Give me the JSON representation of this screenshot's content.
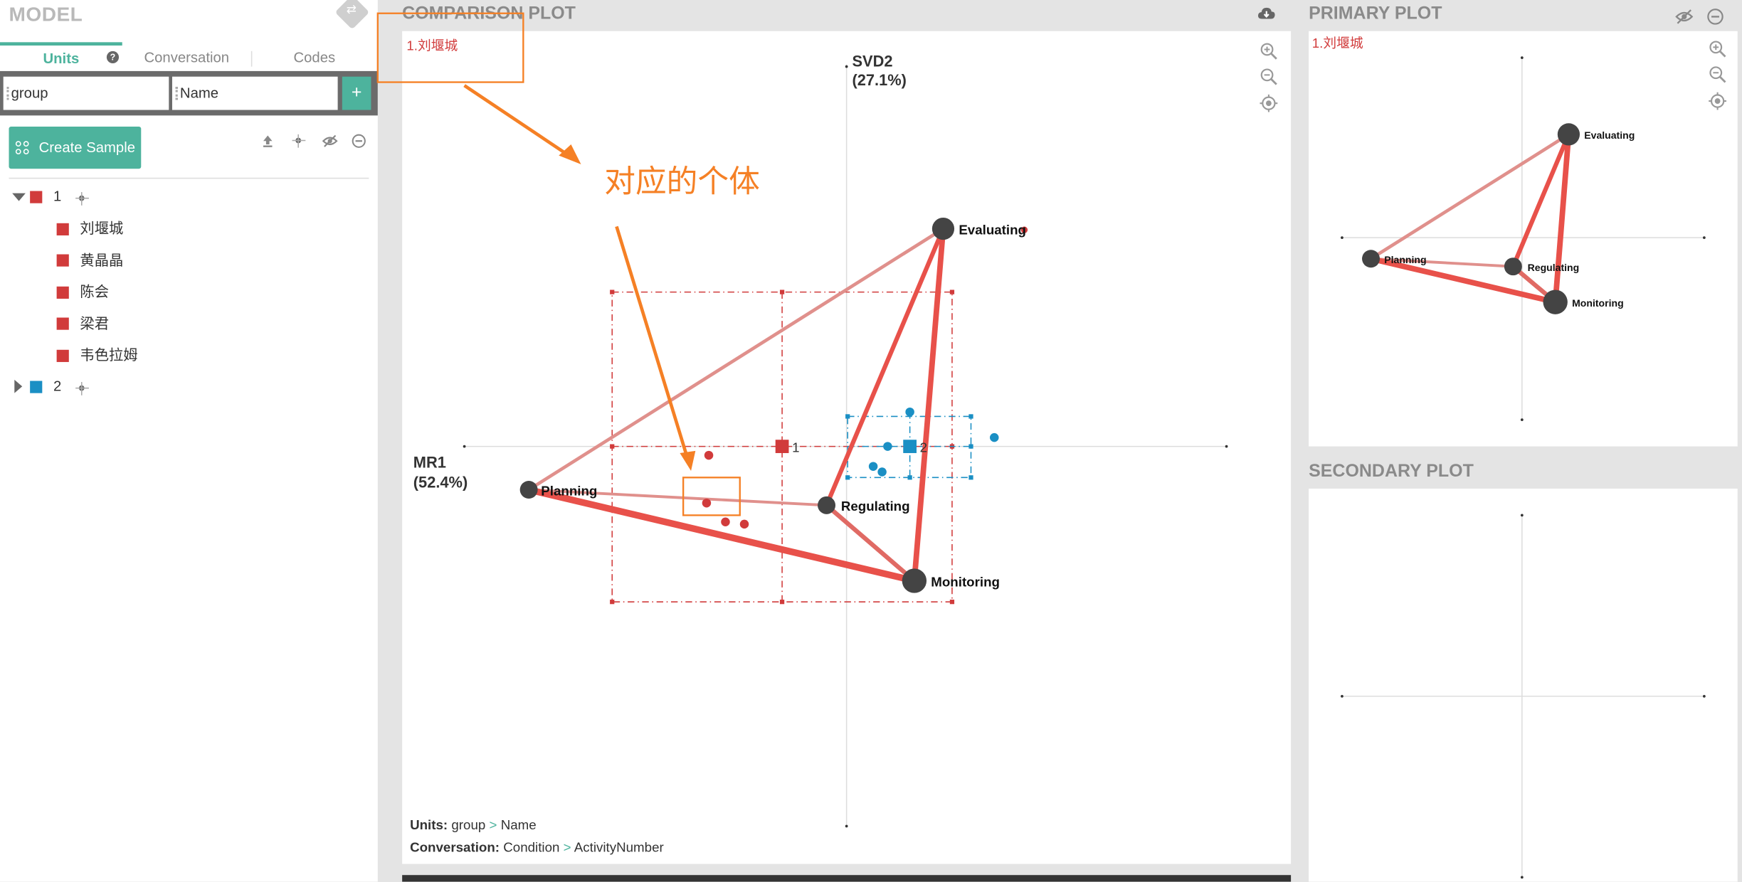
{
  "model": {
    "title": "MODEL",
    "tabs": [
      "Units",
      "Conversation",
      "Codes"
    ],
    "unit_chips": [
      "group",
      "Name"
    ],
    "add_label": "+",
    "create_sample": "Create Sample",
    "tree": [
      {
        "label": "1",
        "color": "#d13b3b",
        "expanded": true,
        "children": [
          "刘堰城",
          "黄晶晶",
          "陈会",
          "梁君",
          "韦色拉姆"
        ]
      },
      {
        "label": "2",
        "color": "#1a8fc4",
        "expanded": false,
        "children": []
      }
    ]
  },
  "comparison": {
    "title": "COMPARISON PLOT",
    "selected_label": "1.刘堰城",
    "axis_y_label": "SVD2",
    "axis_y_pct": "(27.1%)",
    "axis_x_label": "MR1",
    "axis_x_pct": "(52.4%)",
    "annotation": "对应的个体",
    "group_labels": [
      "1",
      "2"
    ],
    "nodes": [
      "Evaluating",
      "Planning",
      "Regulating",
      "Monitoring"
    ],
    "footer": {
      "units_label": "Units:",
      "units_path": [
        "group",
        "Name"
      ],
      "conv_label": "Conversation:",
      "conv_path": [
        "Condition",
        "ActivityNumber"
      ],
      "separator": ">"
    }
  },
  "primary": {
    "title": "PRIMARY PLOT",
    "selected_label": "1.刘堰城",
    "nodes": [
      "Evaluating",
      "Planning",
      "Regulating",
      "Monitoring"
    ]
  },
  "secondary": {
    "title": "SECONDARY PLOT"
  },
  "colors": {
    "accent": "#4db39d",
    "group1": "#d13b3b",
    "group2": "#1a8fc4",
    "edge": "#e8514a",
    "annotation": "#f58025"
  }
}
